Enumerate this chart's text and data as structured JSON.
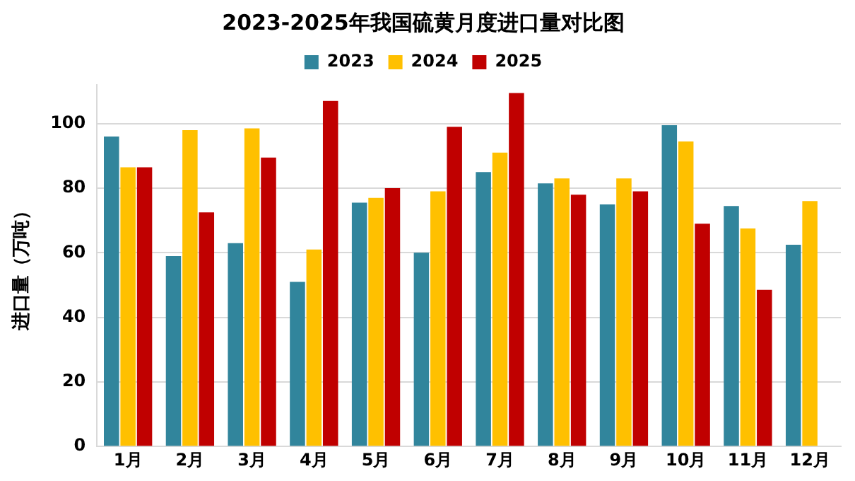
{
  "chart_data": {
    "type": "bar",
    "title": "2023-2025年我国硫黄月度进口量对比图",
    "ylabel": "进口量（万吨）",
    "categories": [
      "1月",
      "2月",
      "3月",
      "4月",
      "5月",
      "6月",
      "7月",
      "8月",
      "9月",
      "10月",
      "11月",
      "12月"
    ],
    "series": [
      {
        "name": "2023",
        "color": "#31859c",
        "values": [
          96,
          59,
          63,
          51,
          75.5,
          60,
          85,
          81.5,
          75,
          99.5,
          74.5,
          62.5
        ]
      },
      {
        "name": "2024",
        "color": "#ffc000",
        "values": [
          86.5,
          98,
          98.5,
          61,
          77,
          79,
          91,
          83,
          83,
          94.5,
          67.5,
          76
        ]
      },
      {
        "name": "2025",
        "color": "#c00000",
        "values": [
          86.5,
          72.5,
          89.5,
          107,
          80,
          99,
          109.5,
          78,
          79,
          69,
          48.5,
          null
        ]
      }
    ],
    "ylim": [
      0,
      112
    ],
    "yticks": [
      0,
      20,
      40,
      60,
      80,
      100
    ],
    "grid": "y",
    "legend": "top"
  }
}
